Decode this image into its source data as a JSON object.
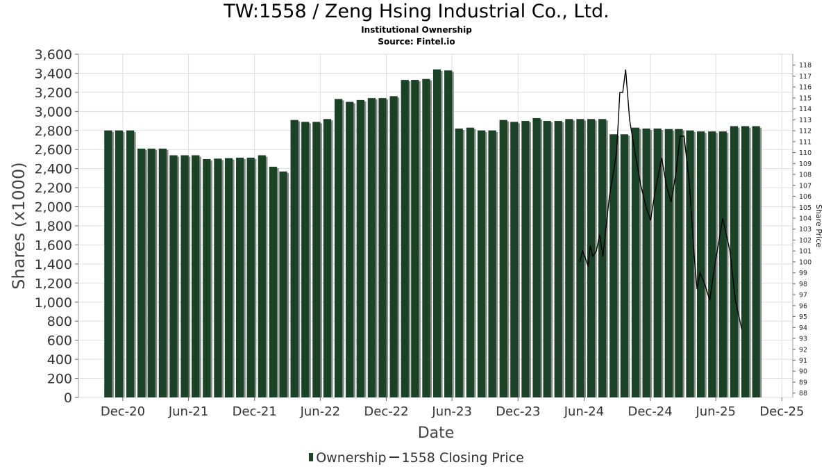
{
  "header": {
    "title": "TW:1558 / Zeng Hsing Industrial Co., Ltd.",
    "subtitle": "Institutional Ownership",
    "source": "Source: Fintel.io"
  },
  "legend": {
    "ownership_label": "Ownership",
    "price_label": "1558 Closing Price"
  },
  "colors": {
    "bar_fill": "#1b4226",
    "bar_shadow": "#8a8a8a",
    "price_line": "#000000",
    "grid": "#dddddd"
  },
  "chart_data": {
    "type": "bar",
    "title": "TW:1558 / Zeng Hsing Industrial Co., Ltd.",
    "xlabel": "Date",
    "ylabel": "Shares (x1000)",
    "y2label": "Share Price",
    "ylim": [
      0,
      3600
    ],
    "y2lim": [
      87.6,
      119.0
    ],
    "yticks": [
      0,
      200,
      400,
      600,
      800,
      1000,
      1200,
      1400,
      1600,
      1800,
      2000,
      2200,
      2400,
      2600,
      2800,
      3000,
      3200,
      3400,
      3600
    ],
    "y2ticks": [
      88,
      89,
      90,
      91,
      92,
      93,
      94,
      95,
      96,
      97,
      98,
      99,
      100,
      101,
      102,
      103,
      104,
      105,
      106,
      107,
      108,
      109,
      110,
      111,
      112,
      113,
      114,
      115,
      116,
      117,
      118
    ],
    "x_tick_labels": [
      "Dec-20",
      "Jun-21",
      "Dec-21",
      "Jun-22",
      "Dec-22",
      "Jun-23",
      "Dec-23",
      "Jun-24",
      "Dec-24",
      "Jun-25",
      "Dec-25"
    ],
    "x_range": [
      "2020-07-31",
      "2025-12-31"
    ],
    "grid": true,
    "legend_position": "bottom",
    "series": [
      {
        "name": "Ownership",
        "type": "bar",
        "points": [
          {
            "date": "2020-10-31",
            "value": 2800
          },
          {
            "date": "2020-11-30",
            "value": 2800
          },
          {
            "date": "2020-12-31",
            "value": 2800
          },
          {
            "date": "2021-01-31",
            "value": 2610
          },
          {
            "date": "2021-02-28",
            "value": 2610
          },
          {
            "date": "2021-03-31",
            "value": 2610
          },
          {
            "date": "2021-04-30",
            "value": 2540
          },
          {
            "date": "2021-05-31",
            "value": 2540
          },
          {
            "date": "2021-06-30",
            "value": 2540
          },
          {
            "date": "2021-07-31",
            "value": 2500
          },
          {
            "date": "2021-08-31",
            "value": 2505
          },
          {
            "date": "2021-09-30",
            "value": 2510
          },
          {
            "date": "2021-10-31",
            "value": 2515
          },
          {
            "date": "2021-11-30",
            "value": 2515
          },
          {
            "date": "2021-12-31",
            "value": 2540
          },
          {
            "date": "2022-01-31",
            "value": 2420
          },
          {
            "date": "2022-02-28",
            "value": 2370
          },
          {
            "date": "2022-03-31",
            "value": 2910
          },
          {
            "date": "2022-04-30",
            "value": 2890
          },
          {
            "date": "2022-05-31",
            "value": 2890
          },
          {
            "date": "2022-06-30",
            "value": 2920
          },
          {
            "date": "2022-07-31",
            "value": 3130
          },
          {
            "date": "2022-08-31",
            "value": 3100
          },
          {
            "date": "2022-09-30",
            "value": 3120
          },
          {
            "date": "2022-10-31",
            "value": 3140
          },
          {
            "date": "2022-11-30",
            "value": 3140
          },
          {
            "date": "2022-12-31",
            "value": 3160
          },
          {
            "date": "2023-01-31",
            "value": 3330
          },
          {
            "date": "2023-02-28",
            "value": 3330
          },
          {
            "date": "2023-03-31",
            "value": 3340
          },
          {
            "date": "2023-04-30",
            "value": 3440
          },
          {
            "date": "2023-05-31",
            "value": 3430
          },
          {
            "date": "2023-06-30",
            "value": 2820
          },
          {
            "date": "2023-07-31",
            "value": 2830
          },
          {
            "date": "2023-08-31",
            "value": 2800
          },
          {
            "date": "2023-09-30",
            "value": 2800
          },
          {
            "date": "2023-10-31",
            "value": 2910
          },
          {
            "date": "2023-11-30",
            "value": 2890
          },
          {
            "date": "2023-12-31",
            "value": 2900
          },
          {
            "date": "2024-01-31",
            "value": 2930
          },
          {
            "date": "2024-02-29",
            "value": 2900
          },
          {
            "date": "2024-03-31",
            "value": 2900
          },
          {
            "date": "2024-04-30",
            "value": 2920
          },
          {
            "date": "2024-05-31",
            "value": 2920
          },
          {
            "date": "2024-06-30",
            "value": 2920
          },
          {
            "date": "2024-07-31",
            "value": 2920
          },
          {
            "date": "2024-08-31",
            "value": 2760
          },
          {
            "date": "2024-09-30",
            "value": 2760
          },
          {
            "date": "2024-10-31",
            "value": 2830
          },
          {
            "date": "2024-11-30",
            "value": 2820
          },
          {
            "date": "2024-12-31",
            "value": 2820
          },
          {
            "date": "2025-01-31",
            "value": 2815
          },
          {
            "date": "2025-02-28",
            "value": 2815
          },
          {
            "date": "2025-03-31",
            "value": 2800
          },
          {
            "date": "2025-04-30",
            "value": 2790
          },
          {
            "date": "2025-05-31",
            "value": 2790
          },
          {
            "date": "2025-06-30",
            "value": 2790
          },
          {
            "date": "2025-07-31",
            "value": 2845
          },
          {
            "date": "2025-08-31",
            "value": 2845
          },
          {
            "date": "2025-09-30",
            "value": 2845
          }
        ]
      },
      {
        "name": "1558 Closing Price",
        "type": "line",
        "axis": "right",
        "points": [
          {
            "date": "2024-05-20",
            "value": 100.0
          },
          {
            "date": "2024-05-28",
            "value": 101.0
          },
          {
            "date": "2024-06-05",
            "value": 100.3
          },
          {
            "date": "2024-06-12",
            "value": 99.6
          },
          {
            "date": "2024-06-18",
            "value": 101.5
          },
          {
            "date": "2024-06-25",
            "value": 100.5
          },
          {
            "date": "2024-07-05",
            "value": 101.0
          },
          {
            "date": "2024-07-14",
            "value": 102.5
          },
          {
            "date": "2024-07-23",
            "value": 100.5
          },
          {
            "date": "2024-08-10",
            "value": 106.0
          },
          {
            "date": "2024-08-30",
            "value": 110.0
          },
          {
            "date": "2024-09-08",
            "value": 115.5
          },
          {
            "date": "2024-09-16",
            "value": 115.5
          },
          {
            "date": "2024-09-24",
            "value": 117.6
          },
          {
            "date": "2024-10-05",
            "value": 113.0
          },
          {
            "date": "2024-10-20",
            "value": 110.0
          },
          {
            "date": "2024-11-05",
            "value": 107.0
          },
          {
            "date": "2024-11-20",
            "value": 105.0
          },
          {
            "date": "2024-12-02",
            "value": 103.8
          },
          {
            "date": "2024-12-15",
            "value": 106.5
          },
          {
            "date": "2025-01-02",
            "value": 109.5
          },
          {
            "date": "2025-01-15",
            "value": 107.0
          },
          {
            "date": "2025-01-28",
            "value": 105.5
          },
          {
            "date": "2025-02-10",
            "value": 108.0
          },
          {
            "date": "2025-02-22",
            "value": 111.5
          },
          {
            "date": "2025-03-05",
            "value": 111.5
          },
          {
            "date": "2025-03-20",
            "value": 107.0
          },
          {
            "date": "2025-04-02",
            "value": 100.5
          },
          {
            "date": "2025-04-10",
            "value": 97.5
          },
          {
            "date": "2025-04-18",
            "value": 99.0
          },
          {
            "date": "2025-05-01",
            "value": 98.0
          },
          {
            "date": "2025-05-15",
            "value": 96.5
          },
          {
            "date": "2025-05-28",
            "value": 99.5
          },
          {
            "date": "2025-06-20",
            "value": 104.0
          },
          {
            "date": "2025-07-10",
            "value": 101.0
          },
          {
            "date": "2025-07-25",
            "value": 96.5
          },
          {
            "date": "2025-08-12",
            "value": 93.8
          }
        ]
      }
    ]
  }
}
